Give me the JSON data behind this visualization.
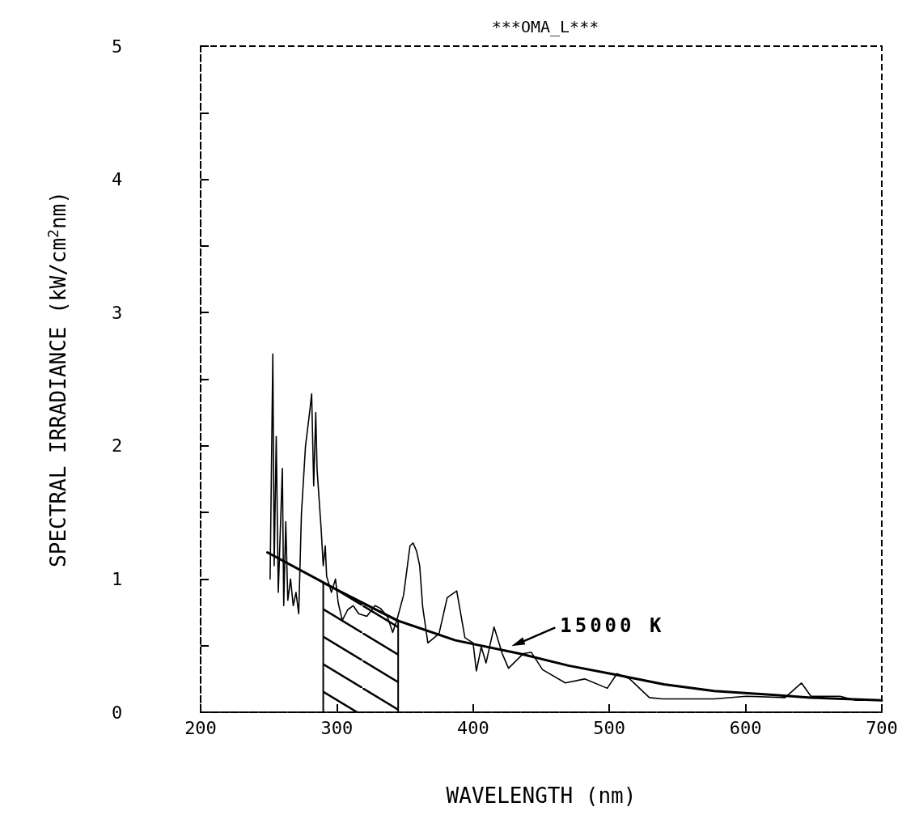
{
  "chart_data": {
    "type": "line",
    "title": "***OMA_L***",
    "xlabel": "WAVELENGTH (nm)",
    "ylabel": "SPECTRAL IRRADIANCE (kW/cm$^{2}$nm)",
    "xlim": [
      200,
      700
    ],
    "xticks": [
      200,
      300,
      400,
      500,
      600,
      700
    ],
    "ylim": [
      0,
      5
    ],
    "yticks": [
      0,
      {
        "value": 0.5,
        "label": null
      },
      1,
      {
        "value": 1.5,
        "label": null
      },
      2,
      {
        "value": 2.5,
        "label": null
      },
      3,
      {
        "value": 3.5,
        "label": null
      },
      4,
      {
        "value": 4.5,
        "label": null
      },
      5
    ],
    "grid": false,
    "marker": "none",
    "line_style": "solid",
    "series": [
      {
        "color": "#000000",
        "x": [
          251,
          253,
          254,
          255.5,
          257,
          260,
          261,
          262.5,
          264,
          266,
          268,
          270,
          272,
          274,
          277,
          280,
          281.5,
          283,
          284.5,
          285.5,
          288.5,
          290,
          291.5,
          292.5,
          296,
          299,
          301,
          304,
          308,
          312,
          316,
          322,
          328,
          332,
          337,
          341,
          344,
          349,
          353.7,
          356,
          358.5,
          360.8,
          363,
          366.8,
          375,
          381,
          388,
          394,
          400,
          402.4,
          406,
          409.5,
          415.4,
          421.4,
          426,
          436.8,
          442.7,
          451,
          467.7,
          481.9,
          498.5,
          505.6,
          515,
          529.4,
          539,
          576.9,
          600.6,
          629,
          641,
          648,
          669.4,
          681,
          700
        ],
        "values": [
          1.0,
          2.69,
          1.1,
          2.07,
          0.9,
          1.83,
          0.8,
          1.43,
          0.84,
          1.0,
          0.8,
          0.9,
          0.74,
          1.49,
          2.0,
          2.25,
          2.39,
          1.7,
          2.25,
          1.82,
          1.37,
          1.1,
          1.25,
          1.02,
          0.9,
          1.0,
          0.82,
          0.69,
          0.77,
          0.8,
          0.74,
          0.72,
          0.8,
          0.78,
          0.72,
          0.6,
          0.69,
          0.88,
          1.25,
          1.27,
          1.21,
          1.1,
          0.79,
          0.52,
          0.59,
          0.86,
          0.91,
          0.56,
          0.52,
          0.31,
          0.49,
          0.37,
          0.64,
          0.44,
          0.33,
          0.44,
          0.45,
          0.32,
          0.22,
          0.25,
          0.18,
          0.29,
          0.25,
          0.11,
          0.1,
          0.1,
          0.12,
          0.11,
          0.22,
          0.12,
          0.12,
          0.09,
          0.09
        ]
      },
      {
        "color": "#000000",
        "x": [
          249,
          300,
          344,
          387,
          434,
          470,
          506,
          540,
          577,
          620,
          648,
          700
        ],
        "values": [
          1.2,
          0.92,
          0.69,
          0.54,
          0.44,
          0.35,
          0.28,
          0.21,
          0.16,
          0.13,
          0.11,
          0.09
        ]
      },
      {
        "type": "area",
        "color": "#000000",
        "x": [
          290,
          290,
          300,
          345,
          345
        ],
        "values": [
          0,
          0.97,
          0.92,
          0.69,
          0
        ]
      }
    ],
    "annotations": [
      {
        "text": "15000 K",
        "x": 427,
        "y": 0.49
      }
    ]
  }
}
